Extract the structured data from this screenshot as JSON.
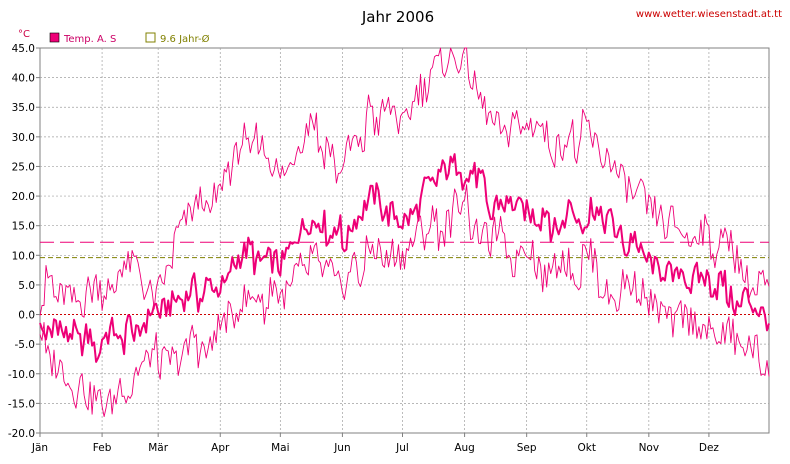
{
  "chart_data": {
    "type": "line",
    "title": "Jahr 2006",
    "source": "www.wetter.wiesenstadt.at.tt",
    "unit": "°C",
    "ylim": [
      -20,
      45
    ],
    "yticks": [
      "45.0",
      "40.0",
      "35.0",
      "30.0",
      "25.0",
      "20.0",
      "15.0",
      "10.0",
      "5.0",
      "0.0",
      "-5.0",
      "-10.0",
      "-15.0",
      "-20.0"
    ],
    "months": [
      "Jän",
      "Feb",
      "Mär",
      "Apr",
      "Mai",
      "Jun",
      "Jul",
      "Aug",
      "Sep",
      "Okt",
      "Nov",
      "Dez"
    ],
    "grid": true,
    "legend_position": "top-left",
    "legend": [
      {
        "label": "Temp. A. S",
        "color": "#ee0077",
        "marker": "filled-square"
      },
      {
        "label": "9.6 Jahr-Ø",
        "color": "#808000",
        "marker": "open-square"
      }
    ],
    "reference_lines": [
      {
        "value": 9.6,
        "color": "#808000",
        "style": "dashed"
      },
      {
        "value": 12.2,
        "color": "#ee0077",
        "style": "long-dash"
      },
      {
        "value": 0,
        "color": "#cc0000",
        "style": "dotted"
      }
    ],
    "series_anchors_x": [
      1,
      15,
      32,
      46,
      60,
      74,
      91,
      105,
      121,
      135,
      152,
      166,
      182,
      196,
      213,
      227,
      244,
      258,
      274,
      288,
      305,
      319,
      335,
      349,
      365
    ],
    "series": [
      {
        "role": "mean",
        "color": "#ee0077",
        "values": [
          -1,
          -4,
          -5,
          -3,
          0,
          2,
          6,
          10,
          10,
          16,
          13,
          20,
          17,
          22,
          25,
          18,
          18,
          16,
          17,
          14,
          10,
          8,
          5,
          3,
          -3
        ]
      },
      {
        "role": "max",
        "color": "#ee0077",
        "values": [
          3,
          5,
          3,
          10,
          3,
          15,
          20,
          30,
          22,
          33,
          25,
          33,
          33,
          40,
          42,
          32,
          32,
          28,
          30,
          25,
          20,
          15,
          13,
          10,
          2
        ]
      },
      {
        "role": "min",
        "color": "#ee0077",
        "values": [
          -5,
          -10,
          -15,
          -12,
          -8,
          -5,
          -3,
          3,
          3,
          8,
          5,
          10,
          8,
          15,
          18,
          12,
          10,
          8,
          8,
          5,
          2,
          0,
          -3,
          -5,
          -8
        ]
      }
    ]
  }
}
